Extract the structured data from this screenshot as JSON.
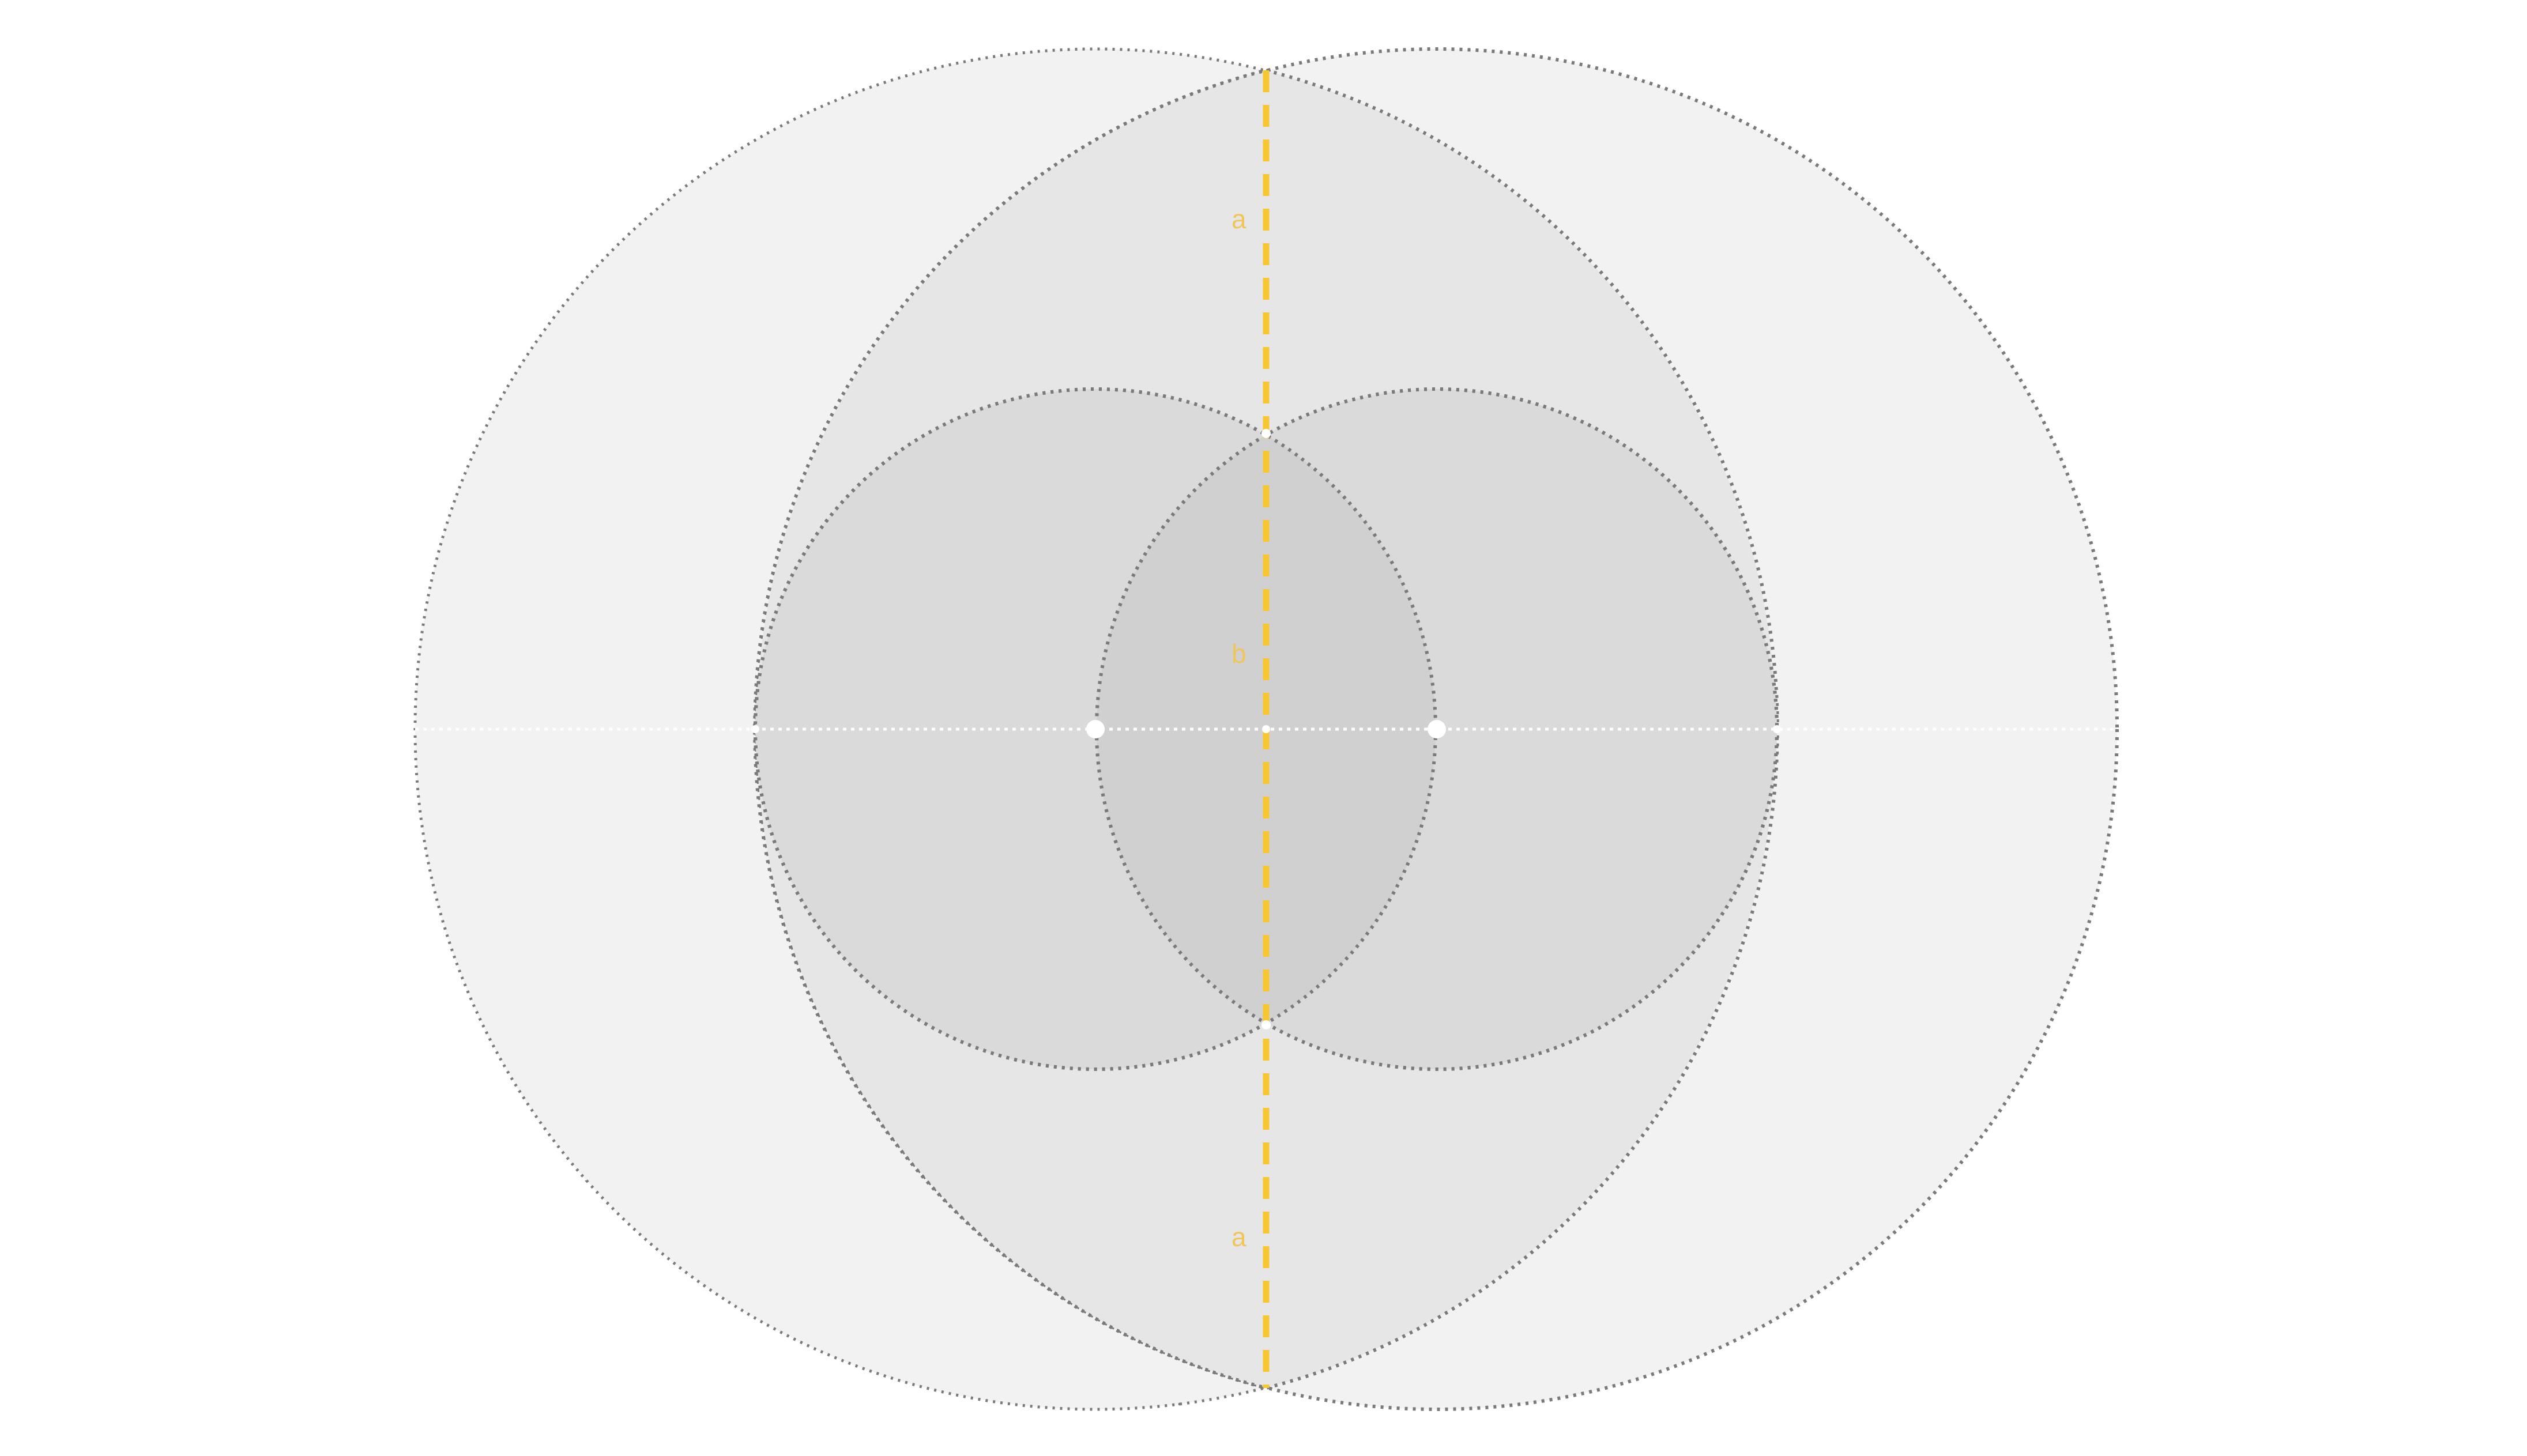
{
  "diagram": {
    "labels": {
      "top_segment": "a",
      "middle_segment": "b",
      "bottom_segment": "a"
    },
    "colors": {
      "outer_fill": "#f2f2f2",
      "lens_fill": "#e6e6e6",
      "inner_fill": "#dadada",
      "inner_overlap_fill": "#d0d0d0",
      "circle_stroke": "#7a7a7a",
      "axis_line": "#ffffff",
      "center_point": "#ffffff",
      "chord": "#f8c630",
      "label_text": "#f0c65a"
    }
  }
}
